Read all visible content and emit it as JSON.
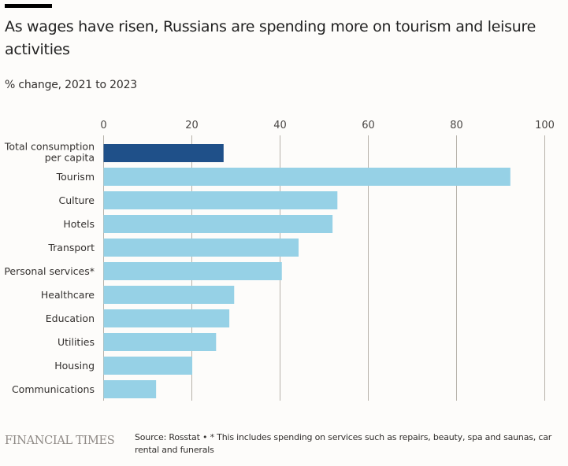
{
  "title": "As wages have risen, Russians are spending more on tourism and leisure activities",
  "subtitle": "% change, 2021 to 2023",
  "footer": {
    "logo": "FINANCIAL TIMES",
    "note": "Source: Rosstat • * This includes spending on services such as repairs, beauty, spa and saunas, car rental and funerals"
  },
  "chart_data": {
    "type": "bar",
    "orientation": "horizontal",
    "title": "As wages have risen, Russians are spending more on tourism and leisure activities",
    "subtitle": "% change, 2021 to 2023",
    "xlabel": "",
    "ylabel": "",
    "xlim": [
      0,
      100
    ],
    "ticks": [
      0,
      20,
      40,
      60,
      80,
      100
    ],
    "tick_labels": [
      "0",
      "20",
      "40",
      "60",
      "80",
      "100"
    ],
    "grid": true,
    "categories": [
      [
        "Total consumption",
        "per capita"
      ],
      [
        "Tourism"
      ],
      [
        "Culture"
      ],
      [
        "Hotels"
      ],
      [
        "Transport"
      ],
      [
        "Personal services*"
      ],
      [
        "Healthcare"
      ],
      [
        "Education"
      ],
      [
        "Utilities"
      ],
      [
        "Housing"
      ],
      [
        "Communications"
      ]
    ],
    "values": [
      27.2,
      92.2,
      53.0,
      51.9,
      44.2,
      40.4,
      29.6,
      28.5,
      25.5,
      20.1,
      11.9
    ],
    "highlight_index": 0,
    "colors": {
      "highlight": "#1f5089",
      "default": "#96d1e6",
      "grid": "#b7b2aa"
    }
  }
}
